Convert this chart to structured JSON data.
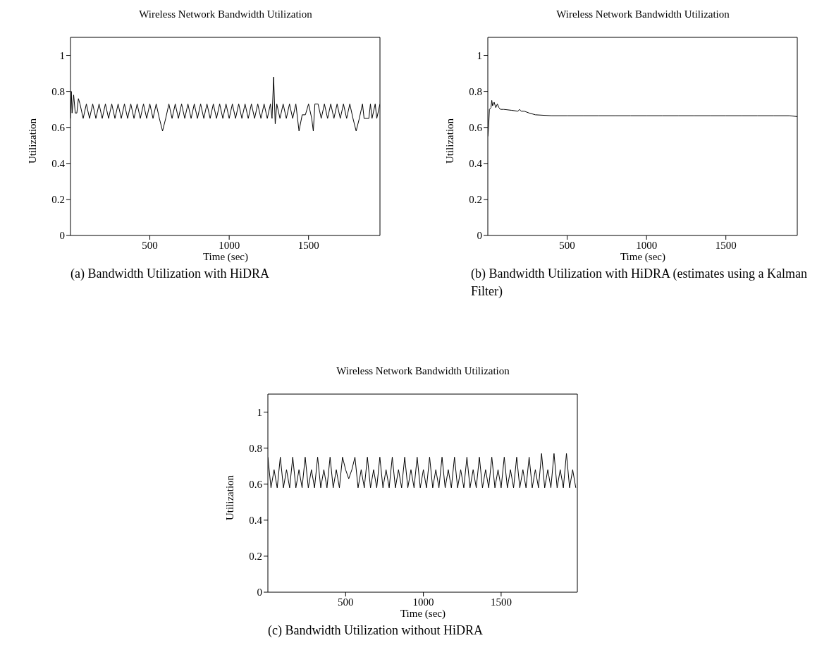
{
  "chart_data": [
    {
      "type": "line",
      "title": "Wireless Network Bandwidth Utilization",
      "xlabel": "Time (sec)",
      "ylabel": "Utilization",
      "xlim": [
        0,
        1950
      ],
      "xticks": [
        500,
        1000,
        1500
      ],
      "ylim": [
        0,
        1.1
      ],
      "yticks": [
        0,
        0.2,
        0.4,
        0.6,
        0.8,
        1
      ],
      "annotations": [
        "(a) Bandwidth Utilization with HiDRA"
      ],
      "series": [
        {
          "color": "#000000",
          "x": [
            0,
            5,
            10,
            20,
            30,
            40,
            50,
            60,
            80,
            100,
            120,
            140,
            160,
            180,
            200,
            220,
            240,
            260,
            280,
            300,
            320,
            340,
            360,
            380,
            400,
            420,
            440,
            460,
            480,
            500,
            520,
            540,
            560,
            580,
            600,
            620,
            640,
            660,
            680,
            700,
            720,
            740,
            760,
            780,
            800,
            820,
            840,
            860,
            880,
            900,
            920,
            940,
            960,
            980,
            1000,
            1020,
            1040,
            1060,
            1080,
            1100,
            1120,
            1140,
            1160,
            1180,
            1200,
            1220,
            1240,
            1260,
            1270,
            1280,
            1290,
            1300,
            1320,
            1340,
            1360,
            1380,
            1400,
            1420,
            1440,
            1460,
            1480,
            1500,
            1520,
            1530,
            1540,
            1560,
            1580,
            1600,
            1620,
            1640,
            1660,
            1680,
            1700,
            1720,
            1740,
            1760,
            1780,
            1800,
            1820,
            1840,
            1850,
            1880,
            1890,
            1900,
            1920,
            1930,
            1950
          ],
          "values": [
            0.65,
            0.8,
            0.68,
            0.78,
            0.68,
            0.68,
            0.76,
            0.73,
            0.65,
            0.73,
            0.65,
            0.73,
            0.65,
            0.73,
            0.65,
            0.73,
            0.65,
            0.73,
            0.65,
            0.73,
            0.65,
            0.73,
            0.65,
            0.73,
            0.65,
            0.73,
            0.65,
            0.73,
            0.65,
            0.73,
            0.65,
            0.73,
            0.65,
            0.58,
            0.65,
            0.73,
            0.65,
            0.73,
            0.65,
            0.73,
            0.65,
            0.73,
            0.65,
            0.73,
            0.65,
            0.73,
            0.65,
            0.73,
            0.65,
            0.73,
            0.65,
            0.73,
            0.65,
            0.73,
            0.65,
            0.73,
            0.65,
            0.73,
            0.65,
            0.73,
            0.65,
            0.73,
            0.65,
            0.73,
            0.65,
            0.73,
            0.65,
            0.73,
            0.65,
            0.88,
            0.62,
            0.73,
            0.65,
            0.73,
            0.65,
            0.73,
            0.65,
            0.73,
            0.58,
            0.67,
            0.67,
            0.73,
            0.65,
            0.58,
            0.73,
            0.73,
            0.65,
            0.73,
            0.65,
            0.73,
            0.65,
            0.73,
            0.65,
            0.73,
            0.65,
            0.73,
            0.65,
            0.58,
            0.65,
            0.73,
            0.65,
            0.65,
            0.73,
            0.65,
            0.73,
            0.65,
            0.73
          ]
        }
      ]
    },
    {
      "type": "line",
      "title": "Wireless Network Bandwidth Utilization",
      "xlabel": "Time (sec)",
      "ylabel": "Utilization",
      "xlim": [
        0,
        1950
      ],
      "xticks": [
        500,
        1000,
        1500
      ],
      "ylim": [
        0,
        1.1
      ],
      "yticks": [
        0,
        0.2,
        0.4,
        0.6,
        0.8,
        1
      ],
      "annotations": [
        "(b) Bandwidth Utilization with HiDRA (estimates using a Kalman Filter)"
      ],
      "series": [
        {
          "color": "#000000",
          "x": [
            0,
            5,
            10,
            20,
            25,
            30,
            40,
            50,
            60,
            70,
            80,
            100,
            150,
            190,
            200,
            210,
            230,
            260,
            300,
            400,
            500,
            600,
            700,
            800,
            900,
            1000,
            1100,
            1200,
            1300,
            1400,
            1500,
            1600,
            1700,
            1800,
            1900,
            1950
          ],
          "values": [
            0.55,
            0.6,
            0.7,
            0.71,
            0.75,
            0.72,
            0.74,
            0.71,
            0.73,
            0.71,
            0.7,
            0.7,
            0.695,
            0.69,
            0.7,
            0.69,
            0.69,
            0.68,
            0.67,
            0.665,
            0.665,
            0.665,
            0.665,
            0.665,
            0.665,
            0.665,
            0.665,
            0.665,
            0.665,
            0.665,
            0.665,
            0.665,
            0.665,
            0.665,
            0.665,
            0.66
          ]
        }
      ]
    },
    {
      "type": "line",
      "title": "Wireless Network Bandwidth Utilization",
      "xlabel": "Time (sec)",
      "ylabel": "Utilization",
      "xlim": [
        0,
        1990
      ],
      "xticks": [
        500,
        1000,
        1500
      ],
      "ylim": [
        0,
        1.1
      ],
      "yticks": [
        0,
        0.2,
        0.4,
        0.6,
        0.8,
        1
      ],
      "annotations": [
        "(c) Bandwidth Utilization without HiDRA"
      ],
      "series": [
        {
          "color": "#000000",
          "x": [
            0,
            20,
            40,
            60,
            80,
            100,
            120,
            140,
            160,
            180,
            200,
            220,
            240,
            260,
            280,
            300,
            320,
            340,
            360,
            380,
            400,
            420,
            440,
            460,
            480,
            500,
            520,
            540,
            560,
            580,
            600,
            620,
            640,
            660,
            680,
            700,
            720,
            740,
            760,
            780,
            800,
            820,
            840,
            860,
            880,
            900,
            920,
            940,
            960,
            980,
            1000,
            1020,
            1040,
            1060,
            1080,
            1100,
            1120,
            1140,
            1160,
            1180,
            1200,
            1220,
            1240,
            1260,
            1280,
            1300,
            1320,
            1340,
            1360,
            1380,
            1400,
            1420,
            1440,
            1460,
            1480,
            1500,
            1520,
            1540,
            1560,
            1580,
            1600,
            1620,
            1640,
            1660,
            1680,
            1700,
            1720,
            1740,
            1760,
            1780,
            1800,
            1820,
            1840,
            1860,
            1880,
            1900,
            1920,
            1940,
            1960,
            1980
          ],
          "values": [
            0.75,
            0.58,
            0.68,
            0.58,
            0.75,
            0.58,
            0.68,
            0.58,
            0.75,
            0.58,
            0.68,
            0.58,
            0.75,
            0.58,
            0.68,
            0.58,
            0.75,
            0.58,
            0.68,
            0.58,
            0.75,
            0.58,
            0.68,
            0.58,
            0.75,
            0.68,
            0.63,
            0.68,
            0.75,
            0.58,
            0.68,
            0.58,
            0.75,
            0.58,
            0.68,
            0.58,
            0.75,
            0.58,
            0.68,
            0.58,
            0.75,
            0.58,
            0.68,
            0.58,
            0.75,
            0.58,
            0.68,
            0.58,
            0.75,
            0.58,
            0.68,
            0.58,
            0.75,
            0.58,
            0.68,
            0.58,
            0.75,
            0.58,
            0.68,
            0.58,
            0.75,
            0.58,
            0.68,
            0.58,
            0.75,
            0.58,
            0.68,
            0.58,
            0.75,
            0.58,
            0.68,
            0.58,
            0.75,
            0.58,
            0.68,
            0.58,
            0.75,
            0.58,
            0.68,
            0.58,
            0.75,
            0.58,
            0.68,
            0.58,
            0.75,
            0.58,
            0.68,
            0.58,
            0.77,
            0.58,
            0.68,
            0.58,
            0.77,
            0.58,
            0.68,
            0.58,
            0.77,
            0.58,
            0.68,
            0.58
          ]
        }
      ]
    }
  ]
}
